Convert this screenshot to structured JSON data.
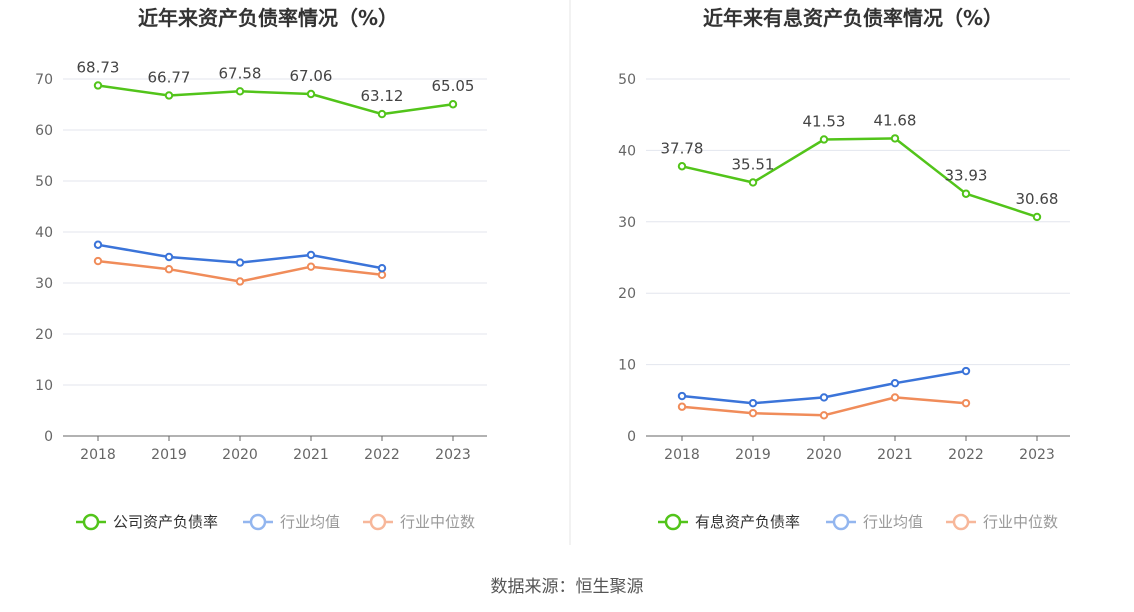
{
  "source_label": "数据来源：恒生聚源",
  "chart_data": [
    {
      "type": "line",
      "title": "近年来资产负债率情况（%）",
      "x": [
        "2018",
        "2019",
        "2020",
        "2021",
        "2022",
        "2023"
      ],
      "ylim": [
        0,
        70
      ],
      "yticks": [
        0,
        10,
        20,
        30,
        40,
        50,
        60,
        70
      ],
      "grid": true,
      "legend_position": "bottom",
      "series": [
        {
          "name": "公司资产负债率",
          "color": "#52c41a",
          "values": [
            68.73,
            66.77,
            67.58,
            67.06,
            63.12,
            65.05
          ],
          "show_labels": true
        },
        {
          "name": "行业均值",
          "color": "#3b74d9",
          "values": [
            37.5,
            35.1,
            34.0,
            35.5,
            32.9,
            null
          ],
          "show_labels": false
        },
        {
          "name": "行业中位数",
          "color": "#f08c5a",
          "values": [
            34.3,
            32.7,
            30.3,
            33.2,
            31.6,
            null
          ],
          "show_labels": false
        }
      ]
    },
    {
      "type": "line",
      "title": "近年来有息资产负债率情况（%）",
      "x": [
        "2018",
        "2019",
        "2020",
        "2021",
        "2022",
        "2023"
      ],
      "ylim": [
        0,
        50
      ],
      "yticks": [
        0,
        10,
        20,
        30,
        40,
        50
      ],
      "grid": true,
      "legend_position": "bottom",
      "series": [
        {
          "name": "有息资产负债率",
          "color": "#52c41a",
          "values": [
            37.78,
            35.51,
            41.53,
            41.68,
            33.93,
            30.68
          ],
          "show_labels": true
        },
        {
          "name": "行业均值",
          "color": "#3b74d9",
          "values": [
            5.6,
            4.6,
            5.4,
            7.4,
            9.1,
            null
          ],
          "show_labels": false
        },
        {
          "name": "行业中位数",
          "color": "#f08c5a",
          "values": [
            4.1,
            3.2,
            2.9,
            5.4,
            4.6,
            null
          ],
          "show_labels": false
        }
      ]
    }
  ]
}
